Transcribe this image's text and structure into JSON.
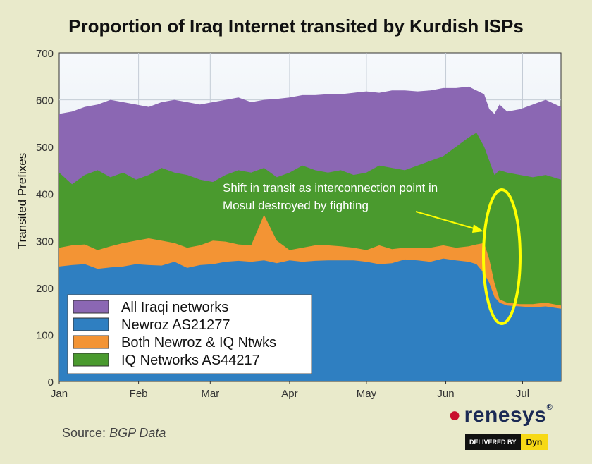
{
  "chart_data": {
    "type": "area",
    "title": "Proportion of Iraq Internet transited by Kurdish ISPs",
    "xlabel": "",
    "ylabel": "Transited Prefixes",
    "ylim": [
      0,
      700
    ],
    "yticks": [
      0,
      100,
      200,
      300,
      400,
      500,
      600,
      700
    ],
    "xticks": [
      "Jan",
      "Feb",
      "Mar",
      "Apr",
      "May",
      "Jun",
      "Jul"
    ],
    "xlim_days": [
      0,
      196
    ],
    "grid": true,
    "legend_placement": "bottom-left",
    "x_days": [
      0,
      5,
      10,
      15,
      20,
      25,
      30,
      35,
      40,
      45,
      50,
      55,
      60,
      65,
      70,
      75,
      80,
      85,
      90,
      95,
      100,
      105,
      110,
      115,
      120,
      125,
      130,
      135,
      140,
      145,
      150,
      155,
      160,
      163,
      166,
      168,
      170,
      172,
      175,
      180,
      185,
      190,
      196
    ],
    "series": [
      {
        "name": "Newroz AS21277",
        "color": "#2f7fc1",
        "values": [
          245,
          248,
          250,
          240,
          243,
          245,
          250,
          248,
          247,
          255,
          242,
          248,
          250,
          255,
          257,
          255,
          258,
          252,
          258,
          255,
          257,
          258,
          258,
          258,
          255,
          250,
          252,
          260,
          258,
          255,
          262,
          258,
          255,
          250,
          230,
          210,
          180,
          168,
          162,
          160,
          158,
          160,
          155
        ]
      },
      {
        "name": "Both Newroz & IQ Ntwks",
        "color": "#f39434",
        "values": [
          285,
          290,
          292,
          280,
          288,
          295,
          300,
          305,
          300,
          295,
          285,
          290,
          300,
          298,
          292,
          290,
          355,
          300,
          280,
          285,
          290,
          290,
          288,
          285,
          280,
          290,
          282,
          285,
          285,
          285,
          290,
          285,
          288,
          292,
          295,
          260,
          210,
          175,
          168,
          165,
          165,
          168,
          162
        ]
      },
      {
        "name": "IQ Networks AS44217",
        "color": "#4a9a2e",
        "values": [
          445,
          420,
          440,
          450,
          435,
          445,
          430,
          440,
          455,
          445,
          440,
          430,
          425,
          440,
          450,
          445,
          455,
          435,
          445,
          460,
          450,
          445,
          450,
          440,
          445,
          460,
          455,
          450,
          460,
          470,
          480,
          500,
          520,
          530,
          500,
          470,
          440,
          450,
          445,
          440,
          435,
          440,
          430
        ]
      },
      {
        "name": "All Iraqi networks",
        "color": "#8b67b3",
        "values": [
          570,
          575,
          585,
          590,
          600,
          595,
          590,
          585,
          595,
          600,
          595,
          590,
          595,
          600,
          605,
          595,
          600,
          602,
          605,
          610,
          610,
          612,
          612,
          615,
          618,
          615,
          620,
          620,
          618,
          620,
          625,
          625,
          628,
          620,
          612,
          580,
          570,
          590,
          575,
          580,
          590,
          600,
          585
        ]
      }
    ],
    "annotation": "Shift in transit as interconnection point in Mosul destroyed by fighting"
  },
  "legend": [
    {
      "label": "All Iraqi networks",
      "color": "#8b67b3"
    },
    {
      "label": "Newroz AS21277",
      "color": "#2f7fc1"
    },
    {
      "label": "Both Newroz & IQ Ntwks",
      "color": "#f39434"
    },
    {
      "label": "IQ Networks AS44217",
      "color": "#4a9a2e"
    }
  ],
  "footer": {
    "source_label": "Source:",
    "source_value": "BGP Data",
    "brand": "renesys",
    "brand_mark": "®",
    "delivered_by": "DELIVERED BY",
    "dyn": "Dyn"
  }
}
